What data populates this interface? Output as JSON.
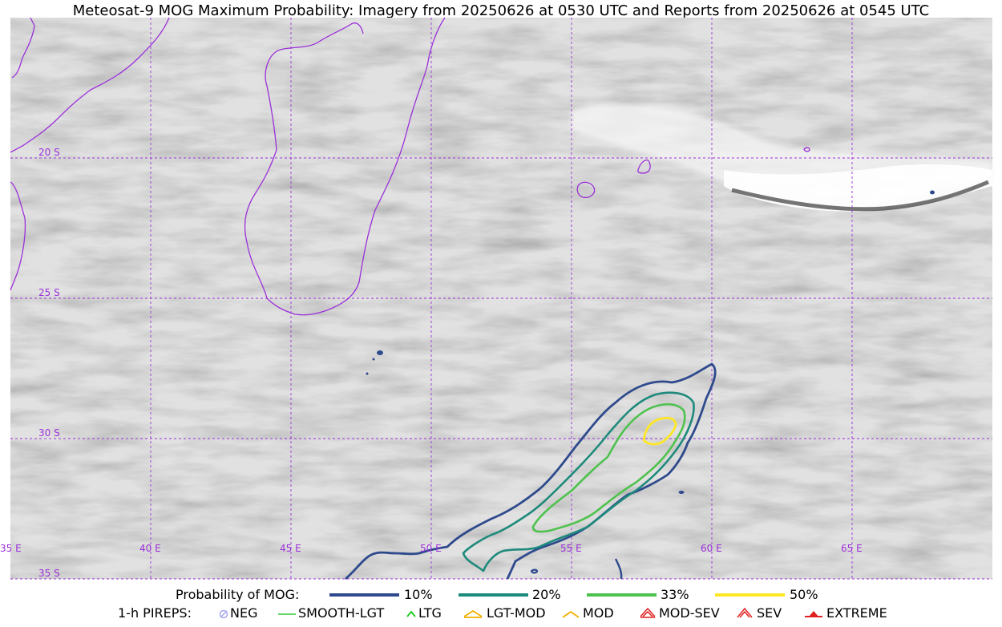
{
  "title": "Meteosat-9 MOG Maximum Probability: Imagery from 20250626 at 0530 UTC and Reports from 20250626 at 0545 UTC",
  "map": {
    "lat_labels": [
      "20 S",
      "25 S",
      "30 S",
      "35 S"
    ],
    "lon_labels": [
      "35 E",
      "40 E",
      "45 E",
      "50 E",
      "55 E",
      "60 E",
      "65 E"
    ],
    "coastline_color": "#9b30d9",
    "gridline_color": "#9b30d9",
    "icon_names": [
      "madagascar-coastline",
      "africa-coastline",
      "reunion-island",
      "mauritius-island",
      "rodrigues-island"
    ]
  },
  "legend": {
    "probability": {
      "label": "Probability of MOG:",
      "items": [
        {
          "label": "10%",
          "color": "#2e4a8c"
        },
        {
          "label": "20%",
          "color": "#1e8a7c"
        },
        {
          "label": "33%",
          "color": "#4ec24e"
        },
        {
          "label": "50%",
          "color": "#fde725"
        }
      ]
    },
    "pireps": {
      "label": "1-h PIREPS:",
      "items": [
        {
          "label": "NEG",
          "color": "#a8a8f0",
          "icon": "neg-icon"
        },
        {
          "label": "SMOOTH-LGT",
          "color": "#33cc33",
          "icon": "smooth-lgt-icon"
        },
        {
          "label": "LTG",
          "color": "#22cc22",
          "icon": "ltg-icon"
        },
        {
          "label": "LGT-MOD",
          "color": "#f0b000",
          "icon": "lgt-mod-icon"
        },
        {
          "label": "MOD",
          "color": "#f0b000",
          "icon": "mod-icon"
        },
        {
          "label": "MOD-SEV",
          "color": "#e02020",
          "icon": "mod-sev-icon"
        },
        {
          "label": "SEV",
          "color": "#e02020",
          "icon": "sev-icon"
        },
        {
          "label": "EXTREME",
          "color": "#e02020",
          "icon": "extreme-icon"
        }
      ]
    }
  }
}
